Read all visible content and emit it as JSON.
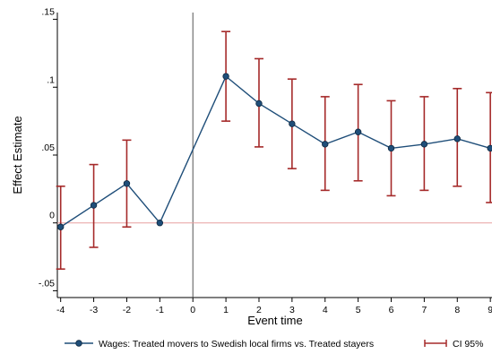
{
  "chart_data": {
    "type": "line",
    "title": "",
    "xlabel": "Event time",
    "ylabel": "Effect Estimate",
    "x": [
      -4,
      -3,
      -2,
      -1,
      1,
      2,
      3,
      4,
      5,
      6,
      7,
      8,
      9
    ],
    "xticks": [
      -4,
      -3,
      -2,
      -1,
      0,
      1,
      2,
      3,
      4,
      5,
      6,
      7,
      8,
      9
    ],
    "yticks": [
      {
        "value": -0.05,
        "label": "-.05"
      },
      {
        "value": 0,
        "label": "0"
      },
      {
        "value": 0.05,
        "label": ".05"
      },
      {
        "value": 0.1,
        "label": ".1"
      },
      {
        "value": 0.15,
        "label": ".15"
      }
    ],
    "xlim": [
      -4.1,
      9.05
    ],
    "ylim": [
      -0.055,
      0.155
    ],
    "series": [
      {
        "name": "Wages: Treated movers to Swedish local firms vs. Treated stayers",
        "values": [
          -0.003,
          0.013,
          0.029,
          0.0,
          0.108,
          0.088,
          0.073,
          0.058,
          0.067,
          0.055,
          0.058,
          0.062,
          0.055
        ],
        "color": "#1f4e79"
      }
    ],
    "ci": {
      "name": "CI 95%",
      "lower": [
        -0.034,
        -0.018,
        -0.003,
        null,
        0.075,
        0.056,
        0.04,
        0.024,
        0.031,
        0.02,
        0.024,
        0.027,
        0.015
      ],
      "upper": [
        0.027,
        0.043,
        0.061,
        null,
        0.141,
        0.121,
        0.106,
        0.093,
        0.102,
        0.09,
        0.093,
        0.099,
        0.096
      ],
      "color": "#a52a2a"
    },
    "reference_lines": {
      "vertical_x": 0,
      "horizontal_y": 0
    },
    "grid": false,
    "legend_position": "bottom"
  }
}
